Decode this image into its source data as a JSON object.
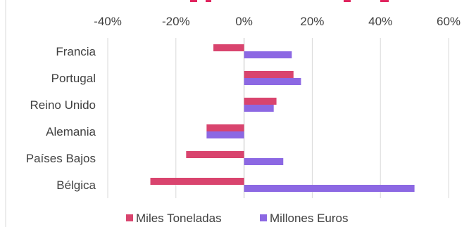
{
  "chart_data": {
    "type": "bar",
    "orientation": "horizontal",
    "title": "",
    "xlabel": "",
    "ylabel": "",
    "categories": [
      "Francia",
      "Portugal",
      "Reino Unido",
      "Alemania",
      "Países Bajos",
      "Bélgica"
    ],
    "series": [
      {
        "name": "Miles Toneladas",
        "color": "#d9446e",
        "values": [
          -9,
          14.5,
          9.5,
          -11,
          -17,
          -27.5
        ]
      },
      {
        "name": "Millones Euros",
        "color": "#8c68e3",
        "values": [
          14,
          16.7,
          8.7,
          -11,
          11.5,
          50
        ]
      }
    ],
    "xlim": [
      -40,
      60
    ],
    "xticks": [
      -40,
      -20,
      0,
      20,
      40,
      60
    ],
    "tick_suffix": "%",
    "grid": true,
    "legend_position": "bottom"
  }
}
